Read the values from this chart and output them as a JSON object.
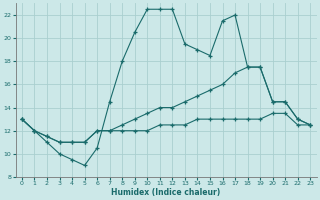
{
  "xlabel": "Humidex (Indice chaleur)",
  "xlim": [
    -0.5,
    23.5
  ],
  "ylim": [
    8,
    23
  ],
  "xticks": [
    0,
    1,
    2,
    3,
    4,
    5,
    6,
    7,
    8,
    9,
    10,
    11,
    12,
    13,
    14,
    15,
    16,
    17,
    18,
    19,
    20,
    21,
    22,
    23
  ],
  "yticks": [
    8,
    10,
    12,
    14,
    16,
    18,
    20,
    22
  ],
  "background_color": "#cce8e8",
  "grid_color": "#aacfcf",
  "line_color": "#1a6b6b",
  "lines": [
    {
      "x": [
        0,
        1,
        2,
        3,
        4,
        5,
        6,
        7,
        8,
        9,
        10,
        11,
        12,
        13,
        14,
        15,
        16,
        17,
        18,
        19,
        20,
        21,
        22,
        23
      ],
      "y": [
        13,
        12,
        11,
        10,
        9.5,
        9,
        10.5,
        14.5,
        18,
        20.5,
        22.5,
        22.5,
        22.5,
        19.5,
        19.0,
        18.5,
        21.5,
        22.0,
        17.5,
        17.5,
        14.5,
        14.5,
        13.0,
        12.5
      ]
    },
    {
      "x": [
        0,
        1,
        2,
        3,
        4,
        5,
        6,
        7,
        8,
        9,
        10,
        11,
        12,
        13,
        14,
        15,
        16,
        17,
        18,
        19,
        20,
        21,
        22,
        23
      ],
      "y": [
        13,
        12,
        11.5,
        11,
        11,
        11,
        12,
        12,
        12.5,
        13,
        13.5,
        14,
        14,
        14.5,
        15,
        15.5,
        16,
        17,
        17.5,
        17.5,
        14.5,
        14.5,
        13.0,
        12.5
      ]
    },
    {
      "x": [
        0,
        1,
        2,
        3,
        4,
        5,
        6,
        7,
        8,
        9,
        10,
        11,
        12,
        13,
        14,
        15,
        16,
        17,
        18,
        19,
        20,
        21,
        22,
        23
      ],
      "y": [
        13,
        12,
        11.5,
        11,
        11,
        11,
        12,
        12,
        12,
        12,
        12,
        12.5,
        12.5,
        12.5,
        13,
        13,
        13,
        13,
        13,
        13,
        13.5,
        13.5,
        12.5,
        12.5
      ]
    }
  ]
}
